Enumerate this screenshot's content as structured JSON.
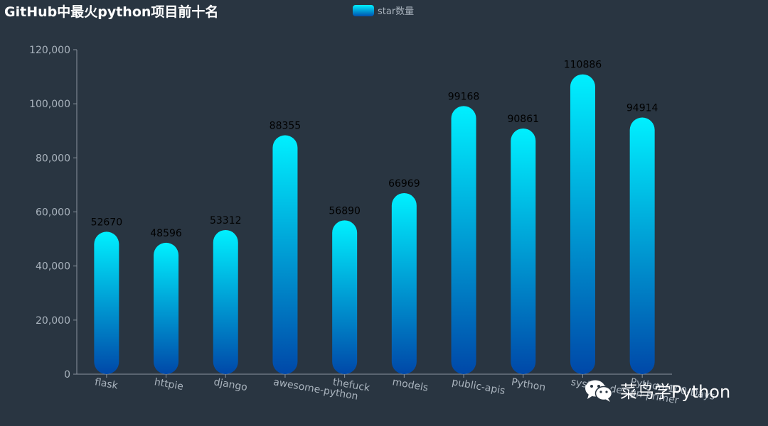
{
  "title": "GitHub中最火python项目前十名",
  "legend": {
    "label": "star数量"
  },
  "watermark": {
    "text": "菜鸟学Python",
    "icon": "wechat-icon"
  },
  "colors": {
    "bar_top": "#00f0ff",
    "bar_bottom": "#0048a8",
    "axis": "#8a949e",
    "tick_text": "#a9b3bd",
    "value_text": "#000000"
  },
  "chart_data": {
    "type": "bar",
    "title": "GitHub中最火python项目前十名",
    "categories": [
      "flask",
      "httpie",
      "django",
      "awesome-python",
      "thefuck",
      "models",
      "public-apis",
      "Python",
      "system-design-primer",
      "Python-100-Days"
    ],
    "series": [
      {
        "name": "star数量",
        "values": [
          52670,
          48596,
          53312,
          88355,
          56890,
          66969,
          99168,
          90861,
          110886,
          94914
        ]
      }
    ],
    "ylim": [
      0,
      120000
    ],
    "yticks": [
      "0",
      "20,000",
      "40,000",
      "60,000",
      "80,000",
      "100,000",
      "120,000"
    ],
    "xlabel": "",
    "ylabel": "",
    "grid": false,
    "legend_position": "top-center"
  }
}
